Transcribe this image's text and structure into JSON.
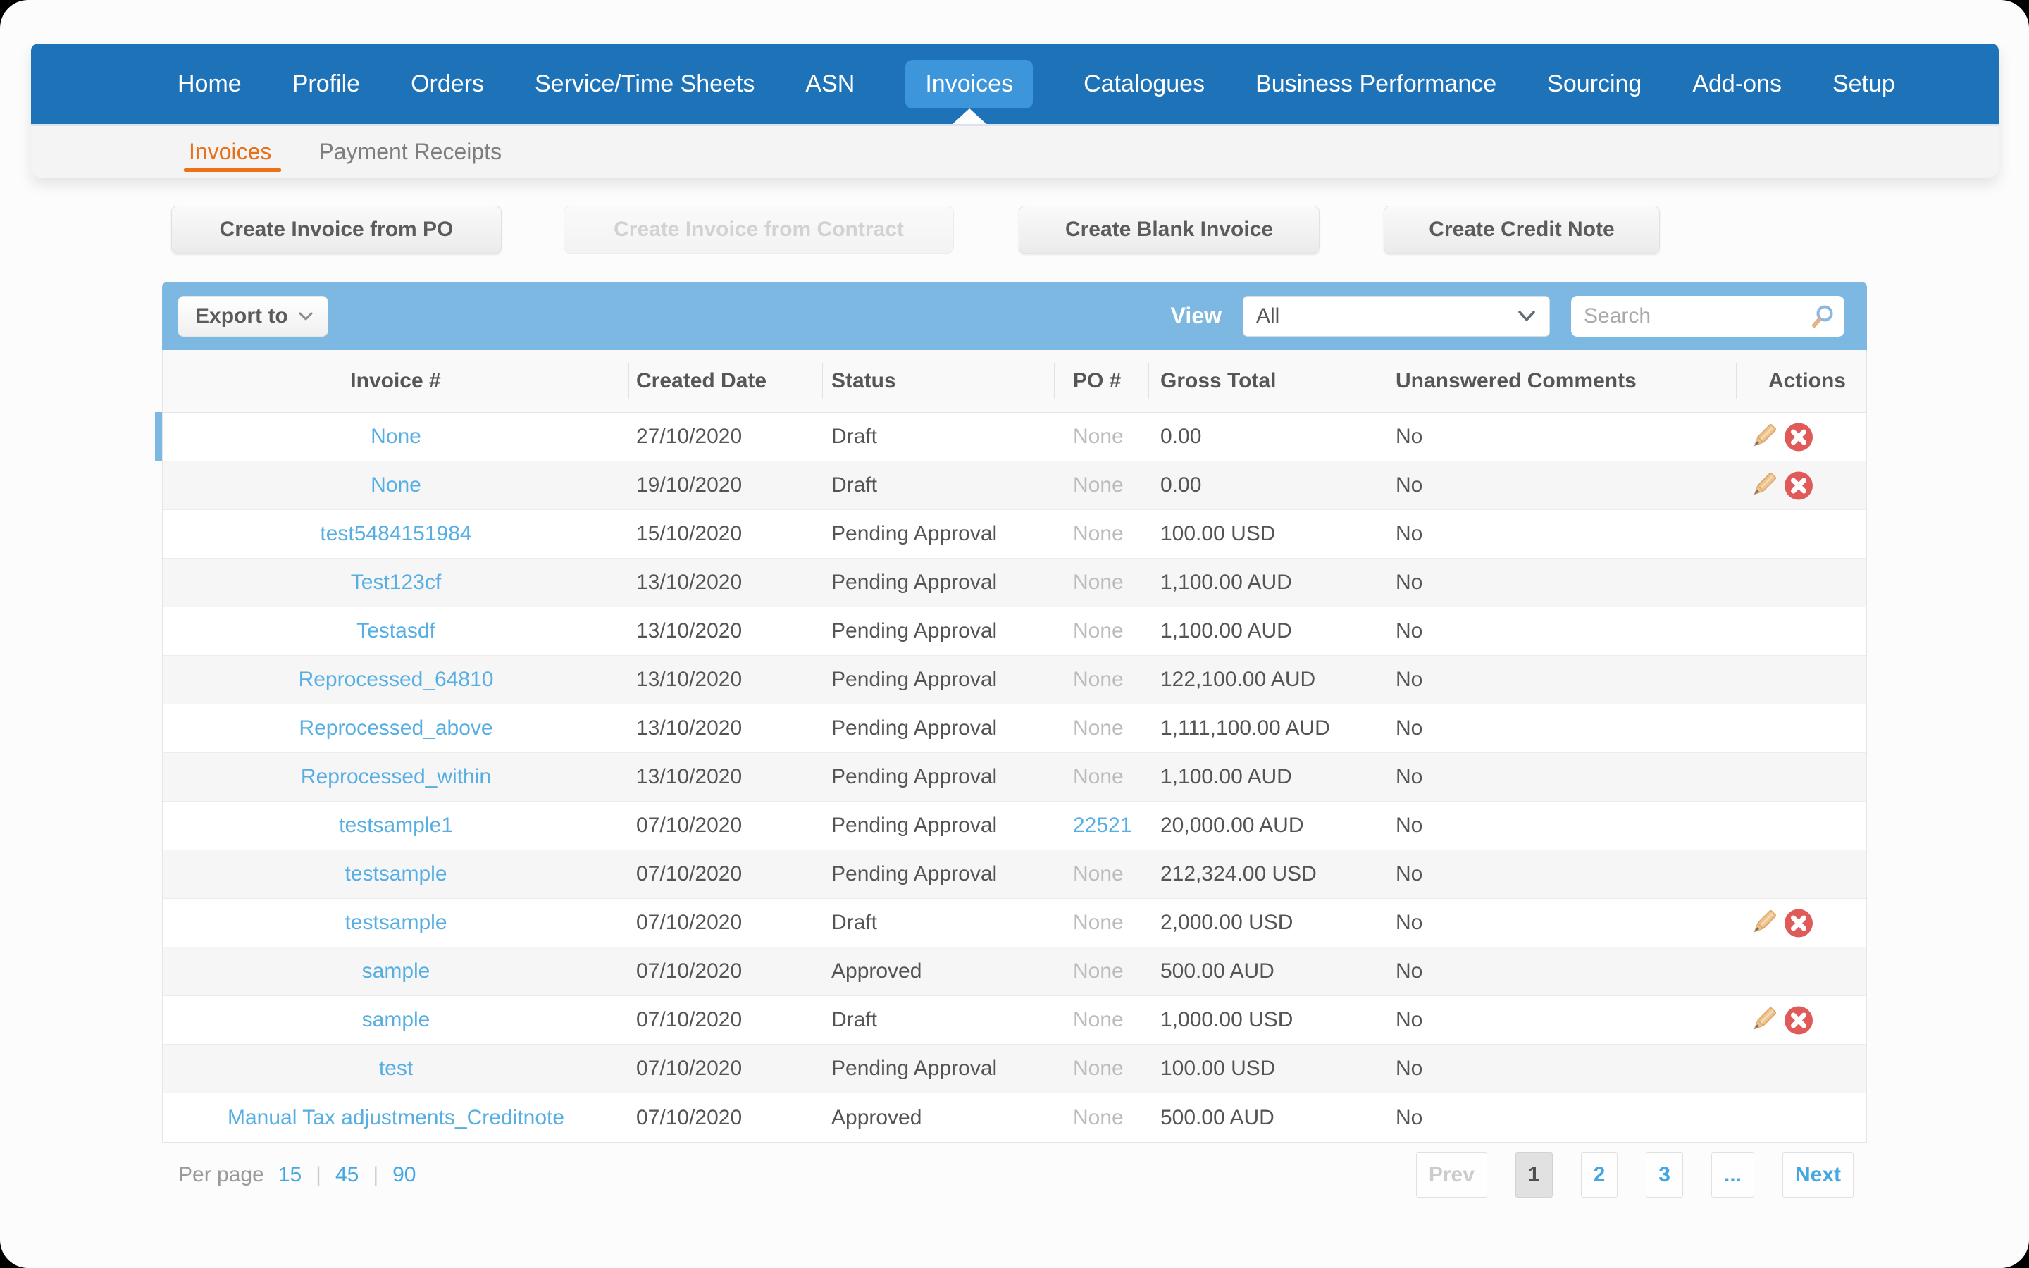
{
  "nav": {
    "items": [
      "Home",
      "Profile",
      "Orders",
      "Service/Time Sheets",
      "ASN",
      "Invoices",
      "Catalogues",
      "Business Performance",
      "Sourcing",
      "Add-ons",
      "Setup"
    ],
    "active": "Invoices"
  },
  "subnav": {
    "tabs": [
      {
        "label": "Invoices",
        "active": true
      },
      {
        "label": "Payment Receipts",
        "active": false
      }
    ]
  },
  "action_buttons": [
    {
      "label": "Create Invoice from PO",
      "enabled": true
    },
    {
      "label": "Create Invoice from Contract",
      "enabled": false
    },
    {
      "label": "Create Blank Invoice",
      "enabled": true
    },
    {
      "label": "Create Credit Note",
      "enabled": true
    }
  ],
  "toolbar": {
    "export_label": "Export to",
    "view_label": "View",
    "view_value": "All",
    "search_placeholder": "Search"
  },
  "table": {
    "columns": [
      "Invoice #",
      "Created Date",
      "Status",
      "PO #",
      "Gross Total",
      "Unanswered Comments",
      "Actions"
    ],
    "rows": [
      {
        "invoice": "None",
        "created": "27/10/2020",
        "status": "Draft",
        "po": "None",
        "po_is_link": false,
        "gross": "0.00",
        "comments": "No",
        "has_actions": true,
        "highlighted": true
      },
      {
        "invoice": "None",
        "created": "19/10/2020",
        "status": "Draft",
        "po": "None",
        "po_is_link": false,
        "gross": "0.00",
        "comments": "No",
        "has_actions": true,
        "highlighted": false
      },
      {
        "invoice": "test5484151984",
        "created": "15/10/2020",
        "status": "Pending Approval",
        "po": "None",
        "po_is_link": false,
        "gross": "100.00 USD",
        "comments": "No",
        "has_actions": false,
        "highlighted": false
      },
      {
        "invoice": "Test123cf",
        "created": "13/10/2020",
        "status": "Pending Approval",
        "po": "None",
        "po_is_link": false,
        "gross": "1,100.00 AUD",
        "comments": "No",
        "has_actions": false,
        "highlighted": false
      },
      {
        "invoice": "Testasdf",
        "created": "13/10/2020",
        "status": "Pending Approval",
        "po": "None",
        "po_is_link": false,
        "gross": "1,100.00 AUD",
        "comments": "No",
        "has_actions": false,
        "highlighted": false
      },
      {
        "invoice": "Reprocessed_64810",
        "created": "13/10/2020",
        "status": "Pending Approval",
        "po": "None",
        "po_is_link": false,
        "gross": "122,100.00 AUD",
        "comments": "No",
        "has_actions": false,
        "highlighted": false
      },
      {
        "invoice": "Reprocessed_above",
        "created": "13/10/2020",
        "status": "Pending Approval",
        "po": "None",
        "po_is_link": false,
        "gross": "1,111,100.00 AUD",
        "comments": "No",
        "has_actions": false,
        "highlighted": false
      },
      {
        "invoice": "Reprocessed_within",
        "created": "13/10/2020",
        "status": "Pending Approval",
        "po": "None",
        "po_is_link": false,
        "gross": "1,100.00 AUD",
        "comments": "No",
        "has_actions": false,
        "highlighted": false
      },
      {
        "invoice": "testsample1",
        "created": "07/10/2020",
        "status": "Pending Approval",
        "po": "22521",
        "po_is_link": true,
        "gross": "20,000.00 AUD",
        "comments": "No",
        "has_actions": false,
        "highlighted": false
      },
      {
        "invoice": "testsample",
        "created": "07/10/2020",
        "status": "Pending Approval",
        "po": "None",
        "po_is_link": false,
        "gross": "212,324.00 USD",
        "comments": "No",
        "has_actions": false,
        "highlighted": false
      },
      {
        "invoice": "testsample",
        "created": "07/10/2020",
        "status": "Draft",
        "po": "None",
        "po_is_link": false,
        "gross": "2,000.00 USD",
        "comments": "No",
        "has_actions": true,
        "highlighted": false
      },
      {
        "invoice": "sample",
        "created": "07/10/2020",
        "status": "Approved",
        "po": "None",
        "po_is_link": false,
        "gross": "500.00 AUD",
        "comments": "No",
        "has_actions": false,
        "highlighted": false
      },
      {
        "invoice": "sample",
        "created": "07/10/2020",
        "status": "Draft",
        "po": "None",
        "po_is_link": false,
        "gross": "1,000.00 USD",
        "comments": "No",
        "has_actions": true,
        "highlighted": false
      },
      {
        "invoice": "test",
        "created": "07/10/2020",
        "status": "Pending Approval",
        "po": "None",
        "po_is_link": false,
        "gross": "100.00 USD",
        "comments": "No",
        "has_actions": false,
        "highlighted": false
      },
      {
        "invoice": "Manual Tax adjustments_Creditnote",
        "created": "07/10/2020",
        "status": "Approved",
        "po": "None",
        "po_is_link": false,
        "gross": "500.00 AUD",
        "comments": "No",
        "has_actions": false,
        "highlighted": false
      }
    ]
  },
  "pagination": {
    "per_page_label": "Per page",
    "per_page_options": [
      "15",
      "45",
      "90"
    ],
    "separator": "|",
    "pages": [
      {
        "label": "Prev",
        "type": "disabled"
      },
      {
        "label": "1",
        "type": "current"
      },
      {
        "label": "2",
        "type": "link"
      },
      {
        "label": "3",
        "type": "link"
      },
      {
        "label": "...",
        "type": "link"
      },
      {
        "label": "Next",
        "type": "link"
      }
    ]
  },
  "icons": {
    "edit": "pencil-icon",
    "delete": "delete-x-icon",
    "search": "magnifier-icon",
    "chevron": "chevron-down-icon"
  },
  "colors": {
    "nav_blue": "#1e73b8",
    "nav_active_pill": "#3d96da",
    "toolbar_blue": "#7cb8e2",
    "link_blue": "#56aee2",
    "pagination_blue": "#45a7e2",
    "accent_orange": "#e8701a",
    "delete_red": "#e05a5a",
    "pencil_tan": "#eec28f"
  }
}
